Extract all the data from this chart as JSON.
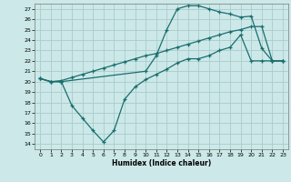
{
  "xlabel": "Humidex (Indice chaleur)",
  "bg_color": "#cce8e8",
  "grid_color": "#aacccc",
  "line_color": "#1a6e6e",
  "xlim": [
    -0.5,
    23.5
  ],
  "ylim": [
    13.5,
    27.5
  ],
  "yticks": [
    14,
    15,
    16,
    17,
    18,
    19,
    20,
    21,
    22,
    23,
    24,
    25,
    26,
    27
  ],
  "xticks": [
    0,
    1,
    2,
    3,
    4,
    5,
    6,
    7,
    8,
    9,
    10,
    11,
    12,
    13,
    14,
    15,
    16,
    17,
    18,
    19,
    20,
    21,
    22,
    23
  ],
  "curve1_x": [
    0,
    1,
    2,
    3,
    4,
    5,
    6,
    7,
    8,
    9,
    10,
    11,
    12,
    13,
    14,
    15,
    16,
    17,
    18,
    19,
    20,
    21,
    22,
    23
  ],
  "curve1_y": [
    20.3,
    20.0,
    20.1,
    20.4,
    20.7,
    21.0,
    21.3,
    21.6,
    21.9,
    22.2,
    22.5,
    22.7,
    23.0,
    23.3,
    23.6,
    23.9,
    24.2,
    24.5,
    24.8,
    25.0,
    25.3,
    25.3,
    22.0,
    22.0
  ],
  "curve2_x": [
    0,
    1,
    2,
    10,
    11,
    12,
    13,
    14,
    15,
    16,
    17,
    18,
    19,
    20,
    21,
    22,
    23
  ],
  "curve2_y": [
    20.3,
    20.0,
    20.0,
    21.0,
    22.5,
    25.0,
    27.0,
    27.3,
    27.3,
    27.0,
    26.7,
    26.5,
    26.2,
    26.3,
    23.2,
    22.0,
    22.0
  ],
  "curve3_x": [
    0,
    1,
    2,
    3,
    4,
    5,
    6,
    7,
    8,
    9,
    10,
    11,
    12,
    13,
    14,
    15,
    16,
    17,
    18,
    19,
    20,
    21,
    22,
    23
  ],
  "curve3_y": [
    20.3,
    20.0,
    20.0,
    17.7,
    16.5,
    15.3,
    14.2,
    15.3,
    18.3,
    19.5,
    20.2,
    20.7,
    21.2,
    21.8,
    22.2,
    22.2,
    22.5,
    23.0,
    23.3,
    24.5,
    22.0,
    22.0,
    22.0,
    22.0
  ]
}
